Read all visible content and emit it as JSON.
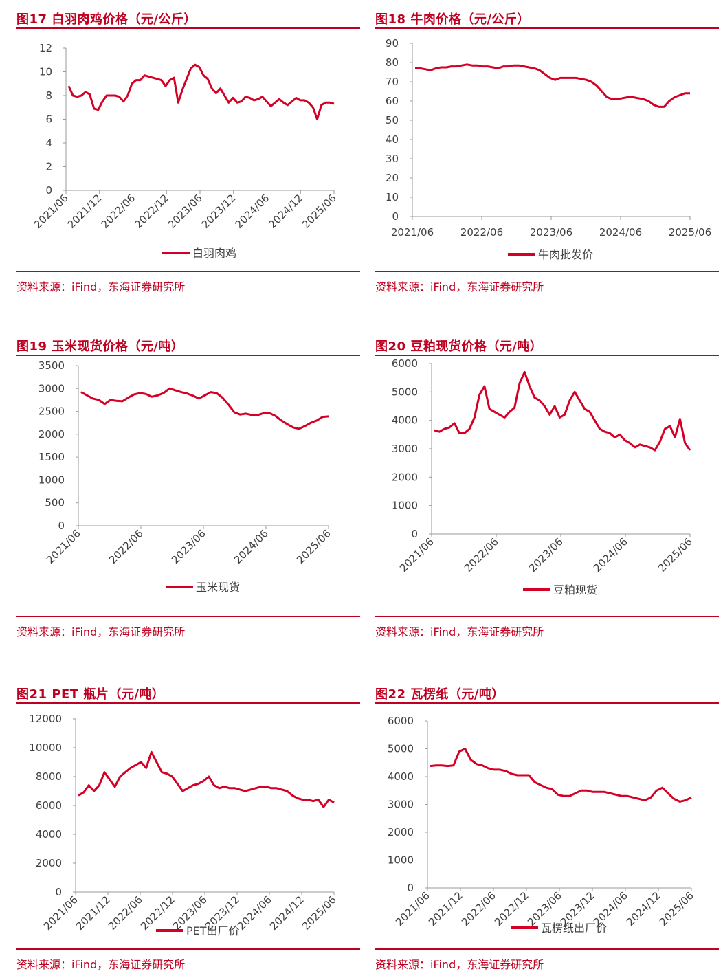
{
  "colors": {
    "accent": "#c00020",
    "series": "#d40025",
    "axis": "#999999",
    "text": "#404040"
  },
  "source_label": "资料来源：iFind，东海证券研究所",
  "chart_data": [
    {
      "id": "fig17",
      "title": "图17  白羽肉鸡价格（元/公斤）",
      "type": "line",
      "ylim": [
        0,
        12
      ],
      "yticks": [
        0,
        2,
        4,
        6,
        8,
        10,
        12
      ],
      "xticks": [
        "2021/06",
        "2021/12",
        "2022/06",
        "2022/12",
        "2023/06",
        "2023/12",
        "2024/06",
        "2024/12",
        "2025/06"
      ],
      "x_label_rotated": true,
      "series": [
        {
          "name": "白羽肉鸡",
          "values": [
            8.8,
            8.0,
            7.9,
            8.0,
            8.3,
            8.1,
            6.9,
            6.8,
            7.5,
            8.0,
            8.0,
            8.0,
            7.9,
            7.5,
            8.0,
            9.0,
            9.3,
            9.3,
            9.7,
            9.6,
            9.5,
            9.4,
            9.3,
            8.8,
            9.3,
            9.5,
            7.4,
            8.5,
            9.4,
            10.3,
            10.6,
            10.4,
            9.7,
            9.4,
            8.6,
            8.2,
            8.6,
            8.0,
            7.4,
            7.8,
            7.4,
            7.5,
            7.9,
            7.8,
            7.6,
            7.7,
            7.9,
            7.5,
            7.1,
            7.4,
            7.7,
            7.4,
            7.2,
            7.5,
            7.8,
            7.6,
            7.6,
            7.4,
            7.0,
            6.0,
            7.2,
            7.4,
            7.4,
            7.3
          ]
        }
      ],
      "legend": "bottom"
    },
    {
      "id": "fig18",
      "title": "图18  牛肉价格（元/公斤）",
      "type": "line",
      "ylim": [
        0,
        90
      ],
      "yticks": [
        0,
        10,
        20,
        30,
        40,
        50,
        60,
        70,
        80,
        90
      ],
      "xticks": [
        "2021/06",
        "2022/06",
        "2023/06",
        "2024/06",
        "2025/06"
      ],
      "x_label_rotated": false,
      "series": [
        {
          "name": "牛肉批发价",
          "values": [
            77,
            77,
            76.5,
            76,
            77,
            77.5,
            77.5,
            78,
            78,
            78.5,
            79,
            78.5,
            78.5,
            78,
            78,
            77.5,
            77,
            78,
            78,
            78.5,
            78.5,
            78,
            77.5,
            77,
            76,
            74,
            72,
            71,
            72,
            72,
            72,
            72,
            71.5,
            71,
            70,
            68,
            65,
            62,
            61,
            61,
            61.5,
            62,
            62,
            61.5,
            61,
            60,
            58,
            57,
            57,
            60,
            62,
            63,
            64,
            64
          ]
        }
      ],
      "legend": "bottom"
    },
    {
      "id": "fig19",
      "title": "图19  玉米现货价格（元/吨）",
      "type": "line",
      "ylim": [
        0,
        3500
      ],
      "yticks": [
        0,
        500,
        1000,
        1500,
        2000,
        2500,
        3000,
        3500
      ],
      "xticks": [
        "2021/06",
        "2022/06",
        "2023/06",
        "2024/06",
        "2025/06"
      ],
      "x_label_rotated": true,
      "series": [
        {
          "name": "玉米现货",
          "values": [
            2920,
            2850,
            2780,
            2750,
            2660,
            2750,
            2730,
            2720,
            2800,
            2870,
            2900,
            2880,
            2820,
            2850,
            2900,
            3000,
            2960,
            2920,
            2890,
            2840,
            2780,
            2850,
            2920,
            2900,
            2800,
            2650,
            2480,
            2430,
            2450,
            2420,
            2420,
            2460,
            2460,
            2400,
            2300,
            2220,
            2150,
            2120,
            2180,
            2250,
            2300,
            2380,
            2390
          ]
        }
      ],
      "legend": "bottom"
    },
    {
      "id": "fig20",
      "title": "图20  豆粕现货价格（元/吨）",
      "type": "line",
      "ylim": [
        0,
        6000
      ],
      "yticks": [
        0,
        1000,
        2000,
        3000,
        4000,
        5000,
        6000
      ],
      "xticks": [
        "2021/06",
        "2022/06",
        "2023/06",
        "2024/06",
        "2025/06"
      ],
      "x_label_rotated": true,
      "series": [
        {
          "name": "豆粕现货",
          "values": [
            3650,
            3600,
            3700,
            3750,
            3900,
            3550,
            3550,
            3700,
            4100,
            4900,
            5200,
            4400,
            4300,
            4200,
            4100,
            4300,
            4450,
            5300,
            5700,
            5200,
            4800,
            4700,
            4500,
            4200,
            4500,
            4100,
            4200,
            4700,
            5000,
            4700,
            4400,
            4300,
            4000,
            3700,
            3600,
            3550,
            3400,
            3500,
            3300,
            3200,
            3050,
            3150,
            3100,
            3050,
            2950,
            3250,
            3700,
            3800,
            3400,
            4050,
            3200,
            2950
          ]
        }
      ],
      "legend": "bottom"
    },
    {
      "id": "fig21",
      "title": "图21  PET 瓶片（元/吨）",
      "type": "line",
      "ylim": [
        0,
        12000
      ],
      "yticks": [
        0,
        2000,
        4000,
        6000,
        8000,
        10000,
        12000
      ],
      "xticks": [
        "2021/06",
        "2021/12",
        "2022/06",
        "2022/12",
        "2023/06",
        "2023/12",
        "2024/06",
        "2024/12",
        "2025/06"
      ],
      "x_label_rotated": true,
      "series": [
        {
          "name": "PET出厂价",
          "values": [
            6700,
            6900,
            7400,
            7000,
            7400,
            8300,
            7800,
            7300,
            8000,
            8300,
            8600,
            8800,
            9000,
            8600,
            9700,
            9000,
            8300,
            8200,
            8000,
            7500,
            7000,
            7200,
            7400,
            7500,
            7700,
            8000,
            7400,
            7200,
            7300,
            7200,
            7200,
            7100,
            7000,
            7100,
            7200,
            7300,
            7300,
            7200,
            7200,
            7100,
            7000,
            6700,
            6500,
            6400,
            6400,
            6300,
            6400,
            5900,
            6400,
            6200
          ]
        }
      ],
      "legend": "bottom"
    },
    {
      "id": "fig22",
      "title": "图22  瓦楞纸（元/吨）",
      "type": "line",
      "ylim": [
        0,
        6000
      ],
      "yticks": [
        0,
        1000,
        2000,
        3000,
        4000,
        5000,
        6000
      ],
      "xticks": [
        "2021/06",
        "2021/12",
        "2022/06",
        "2022/12",
        "2023/06",
        "2023/12",
        "2024/06",
        "2024/12",
        "2025/06"
      ],
      "x_label_rotated": true,
      "series": [
        {
          "name": "瓦楞纸出厂价",
          "values": [
            4380,
            4400,
            4400,
            4380,
            4400,
            4900,
            5000,
            4600,
            4450,
            4400,
            4300,
            4250,
            4250,
            4200,
            4100,
            4050,
            4050,
            4050,
            3800,
            3700,
            3600,
            3550,
            3350,
            3300,
            3300,
            3400,
            3500,
            3500,
            3450,
            3450,
            3450,
            3400,
            3350,
            3300,
            3300,
            3250,
            3200,
            3150,
            3250,
            3500,
            3600,
            3400,
            3200,
            3100,
            3150,
            3250
          ]
        }
      ],
      "legend": "bottom"
    }
  ]
}
